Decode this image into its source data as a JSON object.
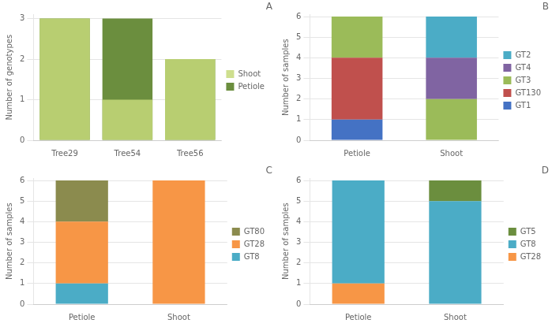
{
  "chart_data": [
    {
      "type": "bar",
      "title": "A",
      "categories": [
        "Tree29",
        "Tree54",
        "Tree56"
      ],
      "series": [
        {
          "name": "Petiole",
          "color": "#6b8e3e",
          "values": [
            3,
            3,
            2
          ]
        },
        {
          "name": "Shoot",
          "color": "#c5d97a",
          "values": [
            3,
            1,
            2
          ]
        }
      ],
      "ylabel": "Number of genotypes",
      "ylim": [
        0,
        3.1
      ],
      "yticks": [
        0,
        1,
        2,
        3
      ],
      "grid": "y",
      "legend": "right",
      "stacked": false
    },
    {
      "type": "bar",
      "title": "B",
      "categories": [
        "Petiole",
        "Shoot"
      ],
      "series": [
        {
          "name": "GT1",
          "color": "#4472c4",
          "values": [
            1,
            0
          ]
        },
        {
          "name": "GT130",
          "color": "#c0504d",
          "values": [
            3,
            0
          ]
        },
        {
          "name": "GT3",
          "color": "#9bbb59",
          "values": [
            2,
            2
          ]
        },
        {
          "name": "GT4",
          "color": "#8064a2",
          "values": [
            0,
            2
          ]
        },
        {
          "name": "GT2",
          "color": "#4bacc6",
          "values": [
            0,
            2
          ]
        }
      ],
      "ylabel": "Number of samples",
      "ylim": [
        0,
        6.1
      ],
      "yticks": [
        0,
        1,
        2,
        3,
        4,
        5,
        6
      ],
      "grid": "y",
      "legend": "right",
      "stacked": true
    },
    {
      "type": "bar",
      "title": "C",
      "categories": [
        "Petiole",
        "Shoot"
      ],
      "series": [
        {
          "name": "GT8",
          "color": "#4bacc6",
          "values": [
            1,
            0
          ]
        },
        {
          "name": "GT28",
          "color": "#f79646",
          "values": [
            3,
            6
          ]
        },
        {
          "name": "GT80",
          "color": "#8b8b4e",
          "values": [
            2,
            0
          ]
        }
      ],
      "ylabel": "Number of samples",
      "ylim": [
        0,
        6.1
      ],
      "yticks": [
        0,
        1,
        2,
        3,
        4,
        5,
        6
      ],
      "grid": "y",
      "legend": "right",
      "stacked": true
    },
    {
      "type": "bar",
      "title": "D",
      "categories": [
        "Petiole",
        "Shoot"
      ],
      "series": [
        {
          "name": "GT28",
          "color": "#f79646",
          "values": [
            1,
            0
          ]
        },
        {
          "name": "GT8",
          "color": "#4bacc6",
          "values": [
            5,
            5
          ]
        },
        {
          "name": "GT5",
          "color": "#6b8e3e",
          "values": [
            0,
            1
          ]
        }
      ],
      "ylabel": "Number of samples",
      "ylim": [
        0,
        6.1
      ],
      "yticks": [
        0,
        1,
        2,
        3,
        4,
        5,
        6
      ],
      "grid": "y",
      "legend": "right",
      "stacked": true
    }
  ]
}
